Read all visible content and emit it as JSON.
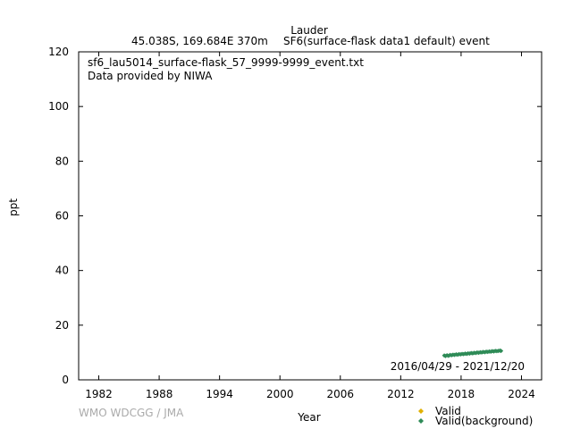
{
  "header": {
    "station": "Lauder",
    "location": "45.038S, 169.684E 370m",
    "dataset": "SF6(surface-flask data1 default) event"
  },
  "plot": {
    "filename": "sf6_lau5014_surface-flask_57_9999-9999_event.txt",
    "provider": "Data provided by NIWA",
    "date_range": "2016/04/29 - 2021/12/20",
    "credit": "WMO WDCGG / JMA"
  },
  "colors": {
    "valid": "#e0b000",
    "background": "#2e8b57",
    "credit": "#aaaaaa"
  },
  "chart_data": {
    "type": "scatter",
    "xlabel": "Year",
    "ylabel": "ppt",
    "xlim": [
      1980,
      2026
    ],
    "ylim": [
      0,
      120
    ],
    "xticks": [
      1982,
      1988,
      1994,
      2000,
      2006,
      2012,
      2018,
      2024
    ],
    "yticks": [
      0,
      20,
      40,
      60,
      80,
      100,
      120
    ],
    "legend_position": "bottom-right",
    "series": [
      {
        "name": "Valid",
        "color": "#e0b000",
        "marker": "diamond",
        "points": []
      },
      {
        "name": "Valid(background)",
        "color": "#2e8b57",
        "marker": "diamond",
        "points": [
          [
            2016.33,
            8.9
          ],
          [
            2016.45,
            8.7
          ],
          [
            2016.6,
            9.0
          ],
          [
            2016.75,
            8.8
          ],
          [
            2016.9,
            9.1
          ],
          [
            2017.05,
            9.0
          ],
          [
            2017.2,
            9.2
          ],
          [
            2017.35,
            9.1
          ],
          [
            2017.5,
            9.3
          ],
          [
            2017.65,
            9.2
          ],
          [
            2017.8,
            9.4
          ],
          [
            2017.95,
            9.3
          ],
          [
            2018.1,
            9.5
          ],
          [
            2018.25,
            9.4
          ],
          [
            2018.4,
            9.6
          ],
          [
            2018.55,
            9.5
          ],
          [
            2018.7,
            9.7
          ],
          [
            2018.85,
            9.6
          ],
          [
            2019.0,
            9.8
          ],
          [
            2019.15,
            9.7
          ],
          [
            2019.3,
            9.9
          ],
          [
            2019.45,
            9.8
          ],
          [
            2019.6,
            10.0
          ],
          [
            2019.75,
            9.9
          ],
          [
            2019.9,
            10.1
          ],
          [
            2020.05,
            10.0
          ],
          [
            2020.2,
            10.2
          ],
          [
            2020.35,
            10.1
          ],
          [
            2020.5,
            10.3
          ],
          [
            2020.65,
            10.2
          ],
          [
            2020.8,
            10.4
          ],
          [
            2020.95,
            10.3
          ],
          [
            2021.1,
            10.5
          ],
          [
            2021.25,
            10.4
          ],
          [
            2021.4,
            10.6
          ],
          [
            2021.55,
            10.5
          ],
          [
            2021.7,
            10.6
          ],
          [
            2021.85,
            10.7
          ],
          [
            2021.97,
            10.6
          ]
        ]
      }
    ]
  }
}
